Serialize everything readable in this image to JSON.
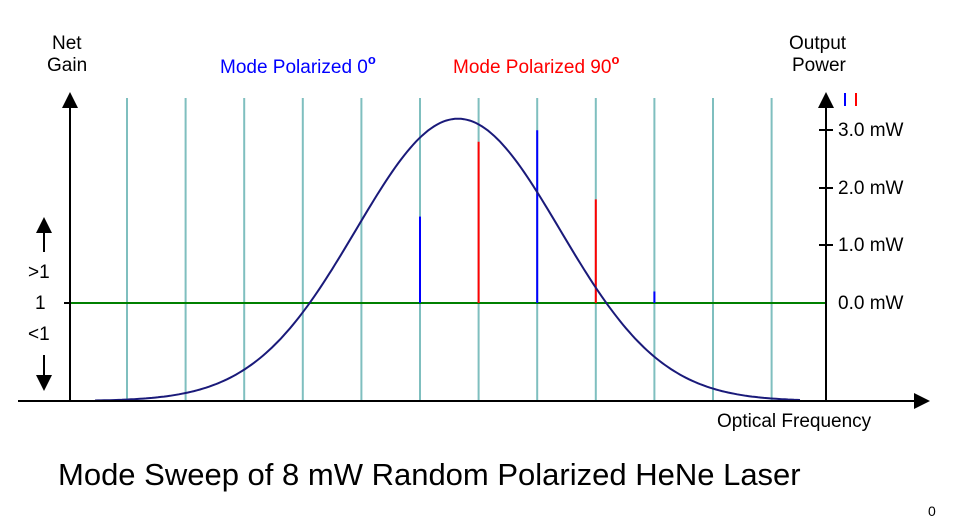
{
  "title": "Mode Sweep of 8 mW Random Polarized HeNe Laser",
  "corner_mark": "0",
  "left_axis": {
    "label_line1": "Net",
    "label_line2": "Gain",
    "tick_greater": ">1",
    "tick_one": "1",
    "tick_less": "<1"
  },
  "right_axis": {
    "label_line1": "Output",
    "label_line2": "Power",
    "ticks": [
      "3.0 mW",
      "2.0 mW",
      "1.0 mW",
      "0.0 mW"
    ]
  },
  "x_axis_label": "Optical Frequency",
  "legend": {
    "mode0_text": "Mode Polarized 0",
    "mode90_text": "Mode Polarized 90",
    "degree_mark": "o"
  },
  "colors": {
    "mode0": "#0000ff",
    "mode90": "#ff0000",
    "gain_curve": "#1a1a7a",
    "cavity_modes": "#7fbfbf",
    "threshold": "#008000",
    "axes": "#000000"
  },
  "modes": {
    "count": 12,
    "oscillating": [
      {
        "index": 5,
        "polarization": "0",
        "power_mW": 1.5
      },
      {
        "index": 6,
        "polarization": "90",
        "power_mW": 2.8
      },
      {
        "index": 7,
        "polarization": "0",
        "power_mW": 3.0
      },
      {
        "index": 8,
        "polarization": "90",
        "power_mW": 1.8
      },
      {
        "index": 9,
        "polarization": "0",
        "power_mW": 0.2
      }
    ]
  },
  "gain_peak_mW": 3.2
}
